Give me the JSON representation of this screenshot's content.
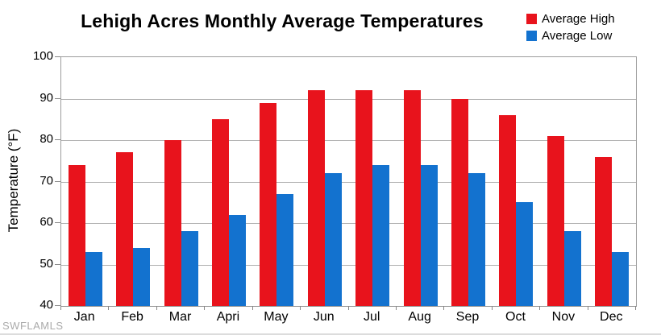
{
  "title": "Lehigh Acres Monthly Average Temperatures",
  "watermark": "SWFLAMLS",
  "colors": {
    "average_high": "#e8131c",
    "average_low": "#1372cf",
    "gridline": "#b3b3b3",
    "axis": "#9c9c9c"
  },
  "chart_data": {
    "type": "bar",
    "title": "Lehigh Acres Monthly Average Temperatures",
    "categories": [
      "Jan",
      "Feb",
      "Mar",
      "Apri",
      "May",
      "Jun",
      "Jul",
      "Aug",
      "Sep",
      "Oct",
      "Nov",
      "Dec"
    ],
    "series": [
      {
        "name": "Average High",
        "color": "#e8131c",
        "values": [
          74,
          77,
          80,
          85,
          89,
          92,
          92,
          92,
          90,
          86,
          81,
          76
        ]
      },
      {
        "name": "Average Low",
        "color": "#1372cf",
        "values": [
          53,
          54,
          58,
          62,
          67,
          72,
          74,
          74,
          72,
          65,
          58,
          53
        ]
      }
    ],
    "xlabel": "",
    "ylabel": "Temperature (°F)",
    "ylim": [
      40,
      100
    ],
    "ytick_interval": 10,
    "ytick_labels": [
      "100",
      "90",
      "80",
      "70",
      "60",
      "50",
      "40"
    ],
    "grid": true,
    "legend_position": "top-right"
  }
}
